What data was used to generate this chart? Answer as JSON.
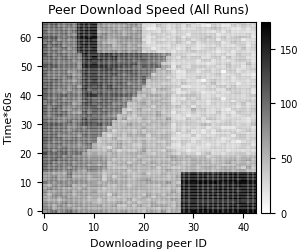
{
  "title": "Peer Download Speed (All Runs)",
  "xlabel": "Downloading peer ID",
  "ylabel": "Time*60s",
  "xticks": [
    0,
    10,
    20,
    30,
    40
  ],
  "yticks": [
    0,
    10,
    20,
    30,
    40,
    50,
    60
  ],
  "colorbar_ticks": [
    0,
    50,
    100,
    150
  ],
  "n_peers": 43,
  "n_times": 66,
  "grid_color": "#ffffff",
  "grid_linewidth": 0.35,
  "cmap": "gray_r",
  "vmin": 0,
  "vmax": 175,
  "figsize": [
    3.06,
    2.53
  ],
  "dpi": 100,
  "title_fontsize": 9,
  "label_fontsize": 8,
  "tick_fontsize": 7,
  "colorbar_fontsize": 7
}
